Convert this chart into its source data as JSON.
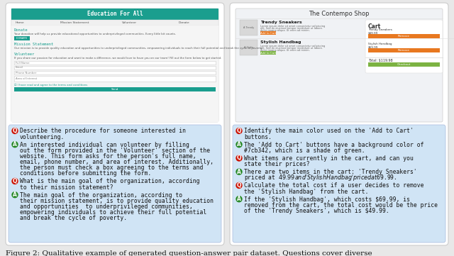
{
  "figure_caption": "Figure 2: Qualitative example of generated question-answer pair dataset. Questions cover diverse",
  "bg_color": "#e8e8e8",
  "panel_bg": "#ffffff",
  "qa_bg": "#d0e4f5",
  "webpage_body_bg": "#ebebeb",
  "teal_color": "#1a9e8e",
  "orange_color": "#e87820",
  "green_btn_color": "#7cb342",
  "left_webpage_title": "Education For All",
  "right_webpage_title": "The Contempo Shop",
  "left_qa": [
    {
      "type": "Q",
      "text": "Describe the procedure for someone interested in\nvolunteering."
    },
    {
      "type": "A",
      "text": "An interested individual can volunteer by filling\nout the form provided in the 'Volunteer' section of the\nwebsite. This form asks for the person's full name,\nemail, phone number, and area of interest. Additionally,\nthe person must check a box agreeing to the terms and\nconditions before submitting the form."
    },
    {
      "type": "Q",
      "text": "What is the main goal of the organization, according\nto their mission statement?"
    },
    {
      "type": "A",
      "text": "The main goal of the organization, according to\ntheir mission statement, is to provide quality education\nand opportunities  to underprivileged communities,\nempowering individuals to achieve their full potential\nand break the cycle of poverty."
    }
  ],
  "right_qa": [
    {
      "type": "Q",
      "text": "Identify the main color used on the 'Add to Cart'\nbuttons."
    },
    {
      "type": "A",
      "text": "The 'Add to Cart' buttons have a background color of\n#7cb342, which is a shade of green."
    },
    {
      "type": "Q",
      "text": "What items are currently in the cart, and can you\nstate their prices?"
    },
    {
      "type": "A",
      "text": "There are two items in the cart: 'Trendy Sneakers'\npriced at $49.99 and 'Stylish Handbag' priced at $69.99."
    },
    {
      "type": "Q",
      "text": "Calculate the total cost if a user decides to remove\nthe 'Stylish Handbag' from the cart."
    },
    {
      "type": "A",
      "text": "If the 'Stylish Handbag', which costs $69.99, is\nremoved from the cart, the total cost would be the price\nof the 'Trendy Sneakers', which is $49.99."
    }
  ],
  "q_color": "#cc1100",
  "a_color": "#2a8a2a",
  "text_color": "#111111",
  "caption_color": "#111111",
  "qa_font_size": 5.8,
  "caption_font_size": 7.5
}
